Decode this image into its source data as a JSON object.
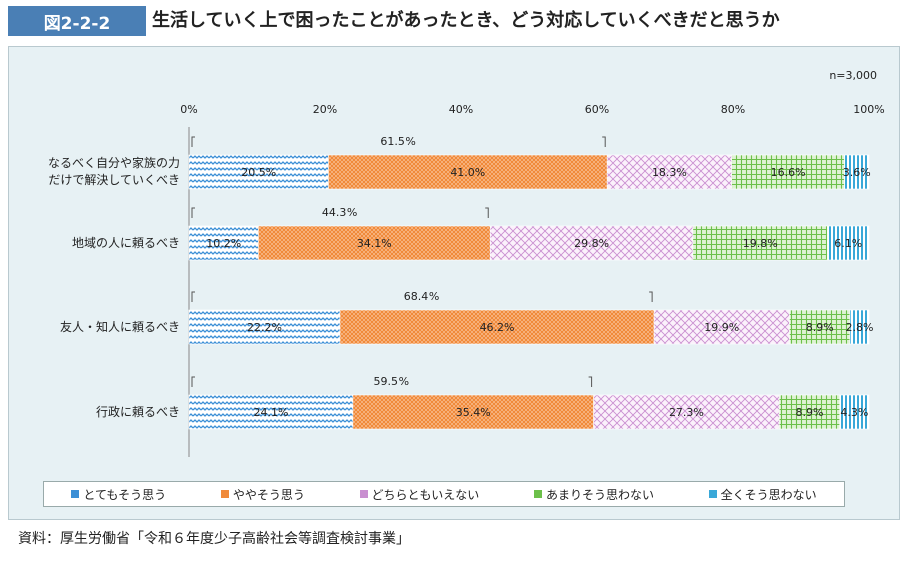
{
  "header": {
    "figure_label": "図2-2-2",
    "title": "生活していく上で困ったことがあったとき、どう対応していくべきだと思うか"
  },
  "note": "n=3,000",
  "source": "資料：厚生労働省「令和６年度少子高齢社会等調査検討事業」",
  "chart_data": {
    "type": "bar",
    "stacked": true,
    "orientation": "horizontal",
    "x_ticks": [
      "0%",
      "20%",
      "40%",
      "60%",
      "80%",
      "100%"
    ],
    "xlim": [
      0,
      100
    ],
    "categories": [
      [
        "なるべく自分や家族の力",
        "だけで解決していくべき"
      ],
      [
        "地域の人に頼るべき"
      ],
      [
        "友人・知人に頼るべき"
      ],
      [
        "行政に頼るべき"
      ]
    ],
    "series": [
      {
        "name": "とてもそう思う",
        "color": "#3b8fd6",
        "values": [
          20.5,
          10.2,
          22.2,
          24.1
        ],
        "labels": [
          "20.5%",
          "10.2%",
          "22.2%",
          "24.1%"
        ]
      },
      {
        "name": "ややそう思う",
        "color": "#f08a3a",
        "values": [
          41.0,
          34.1,
          46.2,
          35.4
        ],
        "labels": [
          "41.0%",
          "34.1%",
          "46.2%",
          "35.4%"
        ]
      },
      {
        "name": "どちらともいえない",
        "color": "#c98fd0",
        "values": [
          18.3,
          29.8,
          19.9,
          27.3
        ],
        "labels": [
          "18.3%",
          "29.8%",
          "19.9%",
          "27.3%"
        ]
      },
      {
        "name": "あまりそう思わない",
        "color": "#6cc04a",
        "values": [
          16.6,
          19.8,
          8.9,
          8.9
        ],
        "labels": [
          "16.6%",
          "19.8%",
          "8.9%",
          "8.9%"
        ]
      },
      {
        "name": "全くそう思わない",
        "color": "#3aa8d8",
        "values": [
          3.6,
          6.1,
          2.8,
          4.3
        ],
        "labels": [
          "3.6%",
          "6.1%",
          "2.8%",
          "4.3%"
        ]
      }
    ],
    "bracket_totals": [
      61.5,
      44.3,
      68.4,
      59.5
    ],
    "bracket_labels": [
      "61.5",
      "44.3",
      "68.4",
      "59.5"
    ],
    "bracket_unit": "%",
    "legend_position": "bottom"
  }
}
